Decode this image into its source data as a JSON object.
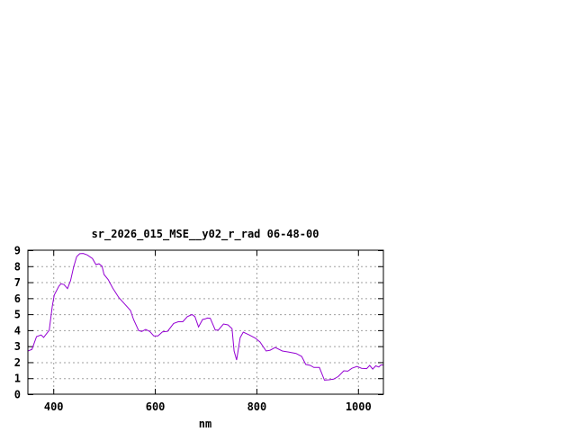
{
  "chart_data": {
    "type": "line",
    "title": "sr_2026_015_MSE__y02_r_rad 06-48-00",
    "xlabel": "nm",
    "ylabel": "",
    "xlim": [
      350,
      1050
    ],
    "ylim": [
      0,
      9
    ],
    "xticks": [
      400,
      600,
      800,
      1000
    ],
    "yticks": [
      0,
      1,
      2,
      3,
      4,
      5,
      6,
      7,
      8,
      9
    ],
    "grid": true,
    "line_color": "#9400d3",
    "series": [
      {
        "x": [
          350,
          358,
          367,
          376,
          381,
          392,
          398,
          402,
          411,
          415,
          421,
          428,
          434,
          440,
          446,
          452,
          459,
          467,
          477,
          484,
          490,
          496,
          500,
          508,
          517,
          529,
          540,
          552,
          558,
          568,
          574,
          582,
          590,
          598,
          606,
          615,
          625,
          637,
          646,
          655,
          664,
          673,
          679,
          686,
          694,
          699,
          703,
          709,
          719,
          725,
          735,
          744,
          752,
          756,
          761,
          768,
          774,
          786,
          798,
          807,
          819,
          827,
          837,
          851,
          863,
          878,
          889,
          897,
          906,
          913,
          924,
          934,
          943,
          952,
          961,
          972,
          980,
          988,
          998,
          1007,
          1017,
          1023,
          1029,
          1035,
          1041,
          1045,
          1050
        ],
        "y": [
          2.7,
          2.8,
          3.6,
          3.7,
          3.55,
          4.0,
          5.5,
          6.2,
          6.75,
          6.9,
          6.85,
          6.6,
          7.1,
          7.95,
          8.6,
          8.78,
          8.8,
          8.7,
          8.48,
          8.1,
          8.15,
          8.0,
          7.48,
          7.16,
          6.64,
          6.04,
          5.66,
          5.23,
          4.67,
          3.98,
          3.92,
          4.05,
          3.92,
          3.64,
          3.64,
          3.9,
          3.93,
          4.42,
          4.53,
          4.53,
          4.85,
          4.98,
          4.85,
          4.2,
          4.67,
          4.7,
          4.76,
          4.75,
          4.01,
          4.01,
          4.39,
          4.33,
          4.1,
          2.7,
          2.14,
          3.54,
          3.88,
          3.7,
          3.5,
          3.26,
          2.7,
          2.75,
          2.92,
          2.7,
          2.64,
          2.55,
          2.36,
          1.86,
          1.8,
          1.67,
          1.67,
          0.88,
          0.9,
          0.94,
          1.1,
          1.46,
          1.44,
          1.62,
          1.74,
          1.62,
          1.6,
          1.8,
          1.57,
          1.77,
          1.7,
          1.83,
          1.83
        ]
      }
    ]
  }
}
